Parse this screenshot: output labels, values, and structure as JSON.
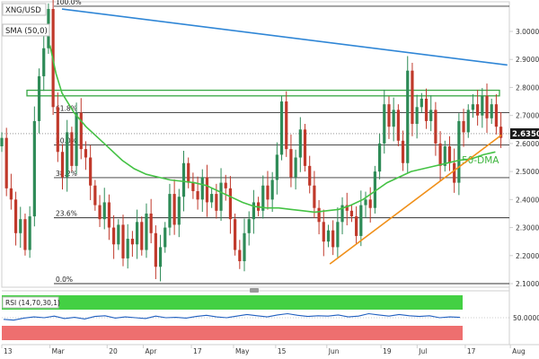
{
  "header": {
    "symbol": "XNG/USD",
    "indicator": "SMA (50,0)"
  },
  "colors": {
    "bull": "#2e8b57",
    "bear": "#c0392b",
    "sma": "#44c244",
    "fib": "#333333",
    "trendline_top": "#2f86d6",
    "trendline_bottom": "#f0901a",
    "resistance_zone": "#39a845",
    "rsi_upper_fill": "#43d043",
    "rsi_lower_fill": "#ee6f6f",
    "rsi_line": "#2060c0",
    "price_badge": "#1a1a1a"
  },
  "price_tag": "2.6350",
  "rsi_panel": {
    "label": "RSI (14,70,30,1)",
    "tick_label": "50.0000",
    "tick_value": 50
  },
  "annotations": {
    "sma_label": "50-DMA"
  },
  "chart_data": {
    "type": "candlestick",
    "y_axis": {
      "min": 2.1,
      "max": 3.0,
      "ticks": [
        "3.0000",
        "2.9000",
        "2.8000",
        "2.7000",
        "2.6000",
        "2.5000",
        "2.4000",
        "2.3000",
        "2.2000",
        "2.1000"
      ]
    },
    "x_labels": [
      {
        "label": "13",
        "day": 0
      },
      {
        "label": "Mar",
        "day": 16
      },
      {
        "label": "20",
        "day": 35
      },
      {
        "label": "Apr",
        "day": 47
      },
      {
        "label": "17",
        "day": 63
      },
      {
        "label": "May",
        "day": 77
      },
      {
        "label": "15",
        "day": 91
      },
      {
        "label": "Jun",
        "day": 108
      },
      {
        "label": "19",
        "day": 126
      },
      {
        "label": "Jul",
        "day": 138
      },
      {
        "label": "17",
        "day": 154
      },
      {
        "label": "Aug",
        "day": 169
      }
    ],
    "fib_levels": [
      {
        "label": "100.0%",
        "value": 3.09
      },
      {
        "label": "61.8%",
        "value": 2.71
      },
      {
        "label": "50.0%",
        "value": 2.595
      },
      {
        "label": "38.2%",
        "value": 2.478
      },
      {
        "label": "23.6%",
        "value": 2.335
      },
      {
        "label": "0.0%",
        "value": 2.1
      }
    ],
    "resistance_zone": [
      2.77,
      2.79
    ],
    "current_price": 2.635,
    "trend_top": [
      {
        "day": 20,
        "value": 3.08
      },
      {
        "day": 168,
        "value": 2.88
      }
    ],
    "trend_bottom": [
      {
        "day": 109,
        "value": 2.17
      },
      {
        "day": 166,
        "value": 2.63
      }
    ],
    "closes": [
      2.62,
      2.44,
      2.4,
      2.28,
      2.33,
      2.22,
      2.34,
      2.68,
      2.84,
      2.94,
      3.08,
      2.73,
      2.57,
      2.48,
      2.64,
      2.52,
      2.71,
      2.58,
      2.55,
      2.45,
      2.38,
      2.33,
      2.39,
      2.3,
      2.24,
      2.31,
      2.19,
      2.26,
      2.24,
      2.32,
      2.22,
      2.35,
      2.28,
      2.16,
      2.23,
      2.3,
      2.42,
      2.31,
      2.41,
      2.53,
      2.46,
      2.43,
      2.4,
      2.48,
      2.39,
      2.42,
      2.36,
      2.46,
      2.44,
      2.33,
      2.22,
      2.18,
      2.28,
      2.33,
      2.39,
      2.36,
      2.45,
      2.4,
      2.47,
      2.56,
      2.75,
      2.58,
      2.48,
      2.55,
      2.65,
      2.52,
      2.45,
      2.37,
      2.32,
      2.25,
      2.29,
      2.23,
      2.32,
      2.38,
      2.36,
      2.34,
      2.27,
      2.38,
      2.4,
      2.37,
      2.5,
      2.6,
      2.74,
      2.66,
      2.72,
      2.61,
      2.53,
      2.86,
      2.67,
      2.73,
      2.76,
      2.68,
      2.72,
      2.6,
      2.52,
      2.59,
      2.53,
      2.46,
      2.68,
      2.64,
      2.72,
      2.74,
      2.7,
      2.77,
      2.69,
      2.74,
      2.66,
      2.62
    ],
    "sma50": [
      {
        "day": 16,
        "value": 2.95
      },
      {
        "day": 18,
        "value": 2.85
      },
      {
        "day": 20,
        "value": 2.78
      },
      {
        "day": 24,
        "value": 2.71
      },
      {
        "day": 28,
        "value": 2.66
      },
      {
        "day": 32,
        "value": 2.62
      },
      {
        "day": 36,
        "value": 2.58
      },
      {
        "day": 40,
        "value": 2.54
      },
      {
        "day": 44,
        "value": 2.51
      },
      {
        "day": 48,
        "value": 2.49
      },
      {
        "day": 52,
        "value": 2.48
      },
      {
        "day": 56,
        "value": 2.47
      },
      {
        "day": 60,
        "value": 2.465
      },
      {
        "day": 64,
        "value": 2.46
      },
      {
        "day": 68,
        "value": 2.45
      },
      {
        "day": 72,
        "value": 2.43
      },
      {
        "day": 76,
        "value": 2.41
      },
      {
        "day": 80,
        "value": 2.39
      },
      {
        "day": 84,
        "value": 2.375
      },
      {
        "day": 88,
        "value": 2.37
      },
      {
        "day": 92,
        "value": 2.37
      },
      {
        "day": 96,
        "value": 2.365
      },
      {
        "day": 100,
        "value": 2.36
      },
      {
        "day": 104,
        "value": 2.355
      },
      {
        "day": 108,
        "value": 2.36
      },
      {
        "day": 112,
        "value": 2.365
      },
      {
        "day": 116,
        "value": 2.38
      },
      {
        "day": 120,
        "value": 2.4
      },
      {
        "day": 124,
        "value": 2.43
      },
      {
        "day": 128,
        "value": 2.46
      },
      {
        "day": 132,
        "value": 2.48
      },
      {
        "day": 136,
        "value": 2.5
      },
      {
        "day": 140,
        "value": 2.51
      },
      {
        "day": 144,
        "value": 2.52
      },
      {
        "day": 148,
        "value": 2.53
      },
      {
        "day": 152,
        "value": 2.54
      },
      {
        "day": 156,
        "value": 2.545
      },
      {
        "day": 160,
        "value": 2.56
      },
      {
        "day": 164,
        "value": 2.57
      }
    ],
    "rsi": [
      46,
      44,
      49,
      52,
      50,
      54,
      48,
      51,
      47,
      53,
      55,
      49,
      52,
      50,
      48,
      54,
      50,
      51,
      49,
      53,
      56,
      52,
      50,
      54,
      58,
      55,
      52,
      57,
      60,
      56,
      53,
      55,
      54,
      57,
      52,
      54,
      60,
      57,
      54,
      58,
      55,
      53,
      55,
      50,
      52,
      51
    ]
  }
}
